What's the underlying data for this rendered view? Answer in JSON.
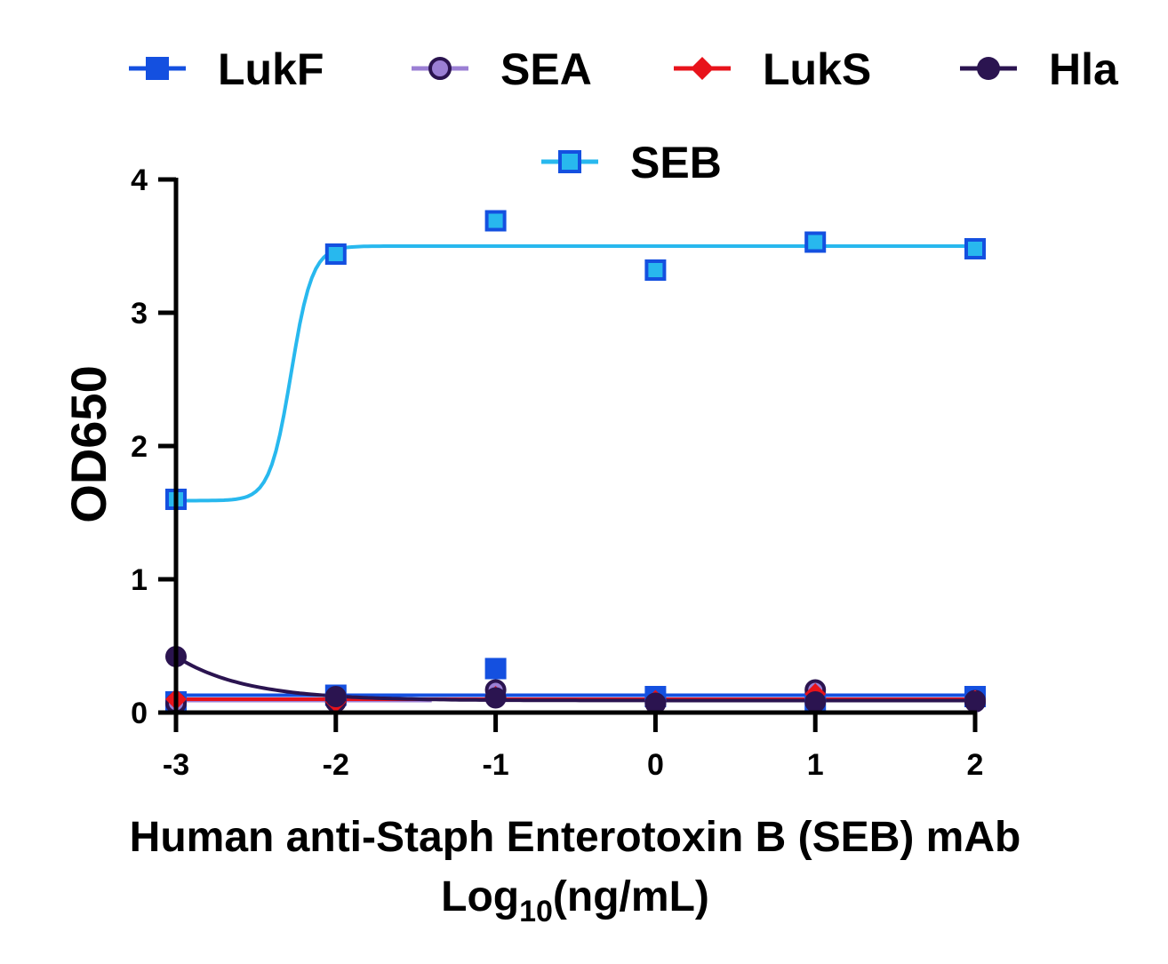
{
  "chart_data": {
    "type": "line",
    "title": "",
    "xlabel_line1": "Human anti-Staph Enterotoxin B (SEB) mAb",
    "xlabel_line2_prefix": "Log",
    "xlabel_line2_sub": "10",
    "xlabel_line2_suffix": "(ng/mL)",
    "ylabel": "OD650",
    "xlim": [
      -3,
      2
    ],
    "ylim": [
      0,
      4
    ],
    "x_ticks": [
      "-3",
      "-2",
      "-1",
      "0",
      "1",
      "2"
    ],
    "y_ticks": [
      "0",
      "1",
      "2",
      "3",
      "4"
    ],
    "grid": false,
    "legend_position": "top",
    "series": [
      {
        "name": "LukF",
        "color": "#1450e0",
        "marker": "square-filled",
        "x": [
          -3,
          -2,
          -1,
          0,
          1,
          2
        ],
        "y": [
          0.08,
          0.13,
          0.33,
          0.12,
          0.07,
          0.12
        ],
        "fit": {
          "kind": "flat",
          "value": 0.13
        }
      },
      {
        "name": "SEA",
        "color": "#9b7fd4",
        "edge": "#2b1450",
        "marker": "circle-open",
        "x": [
          -3,
          -2,
          -1,
          0,
          1,
          2
        ],
        "y": [
          0.07,
          0.08,
          0.17,
          0.07,
          0.17,
          0.09
        ],
        "fit": {
          "kind": "flat",
          "value": 0.09,
          "x_end": -1.4
        }
      },
      {
        "name": "LukS",
        "color": "#e8131b",
        "marker": "diamond",
        "x": [
          -3,
          -2,
          -1,
          0,
          1,
          2
        ],
        "y": [
          0.1,
          0.08,
          0.12,
          0.09,
          0.14,
          0.09
        ],
        "fit": {
          "kind": "flat",
          "value": 0.1
        }
      },
      {
        "name": "Hla",
        "color": "#2b1450",
        "marker": "circle-filled",
        "x": [
          -3,
          -2,
          -1,
          0,
          1,
          2
        ],
        "y": [
          0.42,
          0.12,
          0.11,
          0.07,
          0.08,
          0.08
        ],
        "fit": {
          "kind": "decay",
          "bottom": 0.09,
          "top": 0.42,
          "rate": 2.3
        }
      },
      {
        "name": "SEB",
        "color": "#28b8ee",
        "edge": "#1450e0",
        "marker": "square-open",
        "x": [
          -3,
          -2,
          -1,
          0,
          1,
          2
        ],
        "y": [
          1.6,
          3.44,
          3.69,
          3.32,
          3.53,
          3.48
        ],
        "fit": {
          "kind": "sigmoid",
          "bottom": 1.59,
          "top": 3.5,
          "logec50": -2.28,
          "hill": 6.5
        }
      }
    ]
  }
}
